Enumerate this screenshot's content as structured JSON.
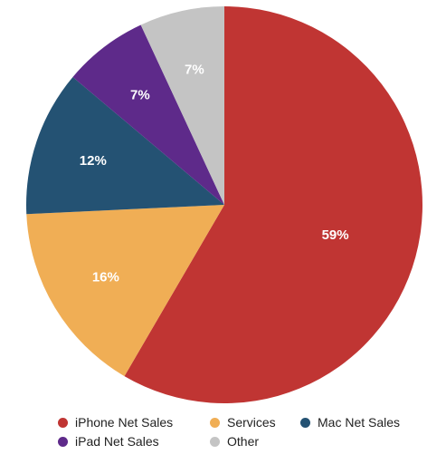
{
  "chart_data": {
    "type": "pie",
    "start_angle_deg": 0,
    "direction": "clockwise",
    "slices": [
      {
        "label": "iPhone Net Sales",
        "value": 59,
        "display": "59%",
        "color": "#c03533"
      },
      {
        "label": "Services",
        "value": 16,
        "display": "16%",
        "color": "#f0ae55"
      },
      {
        "label": "Mac Net Sales",
        "value": 12,
        "display": "12%",
        "color": "#245273"
      },
      {
        "label": "iPad Net Sales",
        "value": 7,
        "display": "7%",
        "color": "#5e2a8a"
      },
      {
        "label": "Other",
        "value": 7,
        "display": "7%",
        "color": "#c4c4c4"
      }
    ],
    "legend_position": "bottom"
  }
}
